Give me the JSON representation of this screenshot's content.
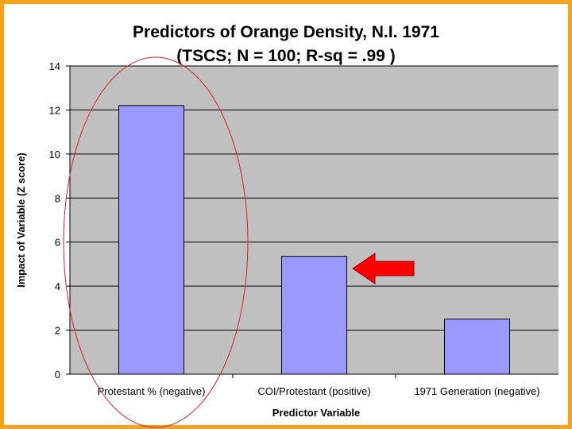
{
  "chart_data": {
    "type": "bar",
    "title": "Predictors of Orange Density, N.I. 1971",
    "subtitle": "(TSCS; N = 100; R-sq = .99 )",
    "xlabel": "Predictor Variable",
    "ylabel": "Impact of Variable (Z score)",
    "categories": [
      "Protestant % (negative)",
      "COI/Protestant (positive)",
      "1971 Generation (negative)"
    ],
    "values": [
      12.2,
      5.35,
      2.5
    ],
    "ylim": [
      0,
      14
    ],
    "yticks": [
      "0",
      "2",
      "4",
      "6",
      "8",
      "10",
      "12",
      "14"
    ],
    "grid": true,
    "legend": "none",
    "annotations": [
      {
        "type": "ellipse",
        "target": "Protestant % (negative)",
        "color": "#e02020"
      },
      {
        "type": "arrow",
        "target": "COI/Protestant (positive)",
        "direction": "left",
        "color": "#ff0000"
      }
    ]
  },
  "colors": {
    "frame": "#f7a21a",
    "plot_background": "#c0c0c0",
    "bar_fill": "#9999ff",
    "bar_stroke": "#000000",
    "gridline": "#000000"
  }
}
